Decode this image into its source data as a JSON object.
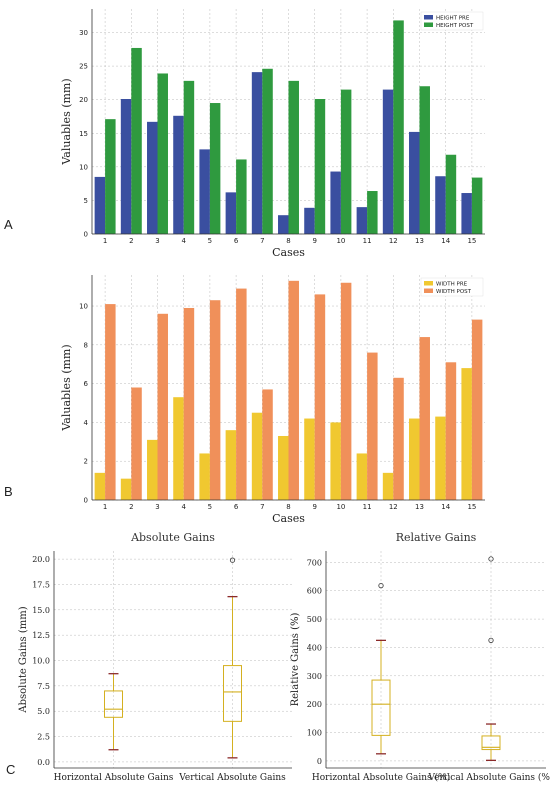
{
  "panel_labels": {
    "a": "A",
    "b": "B",
    "c": "C"
  },
  "colors": {
    "height_pre": "#3a4fa0",
    "height_post": "#2f9a3f",
    "width_pre": "#f0c830",
    "width_post": "#f0905a",
    "box": "#d4b020",
    "median": "#d4b020",
    "whisker_cap": "#8b2a2a",
    "grid": "#bbbbbb"
  },
  "chart_data": [
    {
      "type": "bar",
      "xlabel": "Cases",
      "ylabel": "Valuables (mm)",
      "categories": [
        "1",
        "2",
        "3",
        "4",
        "5",
        "6",
        "7",
        "8",
        "9",
        "10",
        "11",
        "12",
        "13",
        "14",
        "15"
      ],
      "yticks": [
        "0",
        "5",
        "10",
        "15",
        "20",
        "25",
        "30"
      ],
      "ylim": [
        0,
        33.5
      ],
      "grid": true,
      "legend": "top-right",
      "series": [
        {
          "name": "HEIGHT PRE",
          "values": [
            8.5,
            20.1,
            16.7,
            17.6,
            12.6,
            6.2,
            24.1,
            2.8,
            3.9,
            9.3,
            4.0,
            21.5,
            15.2,
            8.6,
            6.1
          ]
        },
        {
          "name": "HEIGHT POST",
          "values": [
            17.1,
            27.7,
            23.9,
            22.8,
            19.5,
            11.1,
            24.6,
            22.8,
            20.1,
            21.5,
            6.4,
            31.8,
            22.0,
            11.8,
            8.4
          ]
        }
      ]
    },
    {
      "type": "bar",
      "xlabel": "Cases",
      "ylabel": "Valuables (mm)",
      "categories": [
        "1",
        "2",
        "3",
        "4",
        "5",
        "6",
        "7",
        "8",
        "9",
        "10",
        "11",
        "12",
        "13",
        "14",
        "15"
      ],
      "yticks": [
        "0",
        "2",
        "4",
        "6",
        "8",
        "10"
      ],
      "ylim": [
        0,
        11.6
      ],
      "grid": true,
      "legend": "top-right",
      "series": [
        {
          "name": "WIDTH PRE",
          "values": [
            1.4,
            1.1,
            3.1,
            5.3,
            2.4,
            3.6,
            4.5,
            3.3,
            4.2,
            4.0,
            2.4,
            1.4,
            4.2,
            4.3,
            6.8
          ]
        },
        {
          "name": "WIDTH POST",
          "values": [
            10.1,
            5.8,
            9.6,
            9.9,
            10.3,
            10.9,
            5.7,
            11.3,
            10.6,
            11.2,
            7.6,
            6.3,
            8.4,
            7.1,
            9.3
          ]
        }
      ]
    },
    {
      "type": "box",
      "title": "Absolute Gains",
      "ylabel": "Absolute Gains (mm)",
      "categories": [
        "Horizontal Absolute Gains",
        "Vertical Absolute Gains"
      ],
      "yticks": [
        "0.0",
        "2.5",
        "5.0",
        "7.5",
        "10.0",
        "12.5",
        "15.0",
        "17.5",
        "20.0"
      ],
      "ylim": [
        -0.6,
        20.8
      ],
      "grid": true,
      "boxes": [
        {
          "min": 1.2,
          "q1": 4.4,
          "median": 5.2,
          "q3": 7.0,
          "max": 8.7,
          "outliers": []
        },
        {
          "min": 0.4,
          "q1": 4.0,
          "median": 6.9,
          "q3": 9.5,
          "max": 16.3,
          "outliers": [
            19.9
          ]
        }
      ]
    },
    {
      "type": "box",
      "title": "Relative Gains",
      "ylabel": "Relative Gains (%)",
      "categories": [
        "Horizontal Absolute Gains (%)",
        "Vertical Absolute Gains (%)"
      ],
      "yticks": [
        "0",
        "100",
        "200",
        "300",
        "400",
        "500",
        "600",
        "700"
      ],
      "ylim": [
        -25,
        740
      ],
      "grid": true,
      "boxes": [
        {
          "min": 25,
          "q1": 90,
          "median": 200,
          "q3": 285,
          "max": 425,
          "outliers": [
            618
          ]
        },
        {
          "min": 2,
          "q1": 40,
          "median": 48,
          "q3": 88,
          "max": 130,
          "outliers": [
            425,
            712
          ]
        }
      ]
    }
  ]
}
